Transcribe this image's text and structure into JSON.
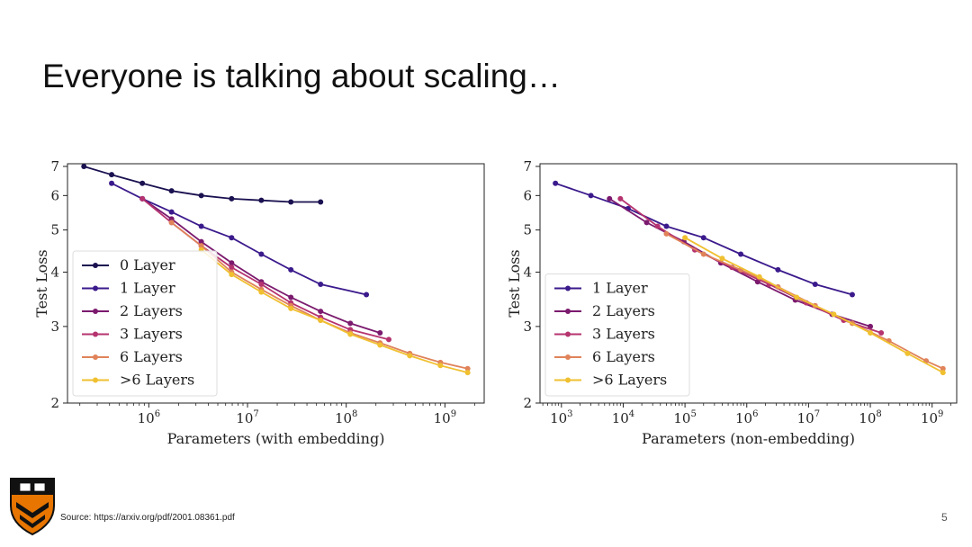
{
  "slide": {
    "title": "Everyone is talking about scaling…",
    "source": "Source: https://arxiv.org/pdf/2001.08361.pdf",
    "page_number": "5",
    "logo_icon": "princeton-shield-icon"
  },
  "chart_data": [
    {
      "type": "line",
      "xscale": "log",
      "yscale": "log",
      "xlabel": "Parameters (with embedding)",
      "ylabel": "Test Loss",
      "xlim": [
        150000,
        2500000000
      ],
      "ylim": [
        2,
        7.1
      ],
      "xticks": [
        {
          "v": 1000000,
          "b": "10",
          "e": "6"
        },
        {
          "v": 10000000,
          "b": "10",
          "e": "7"
        },
        {
          "v": 100000000,
          "b": "10",
          "e": "8"
        },
        {
          "v": 1000000000,
          "b": "10",
          "e": "9"
        }
      ],
      "yticks": [
        {
          "v": 2,
          "label": "2"
        },
        {
          "v": 3,
          "label": "3"
        },
        {
          "v": 4,
          "label": "4"
        },
        {
          "v": 5,
          "label": "5"
        },
        {
          "v": 6,
          "label": "6"
        },
        {
          "v": 7,
          "label": "7"
        }
      ],
      "legend_position": "lower-left",
      "series": [
        {
          "name": "0 Layer",
          "color": "#1a1150",
          "x": [
            220000,
            420000,
            860000,
            1700000,
            3400000,
            6900000,
            13800000,
            27500000,
            55000000
          ],
          "y": [
            7.0,
            6.7,
            6.4,
            6.15,
            6.0,
            5.9,
            5.85,
            5.8,
            5.8
          ]
        },
        {
          "name": "1 Layer",
          "color": "#3b1a8c",
          "x": [
            420000,
            860000,
            1700000,
            3400000,
            6900000,
            13800000,
            27500000,
            55000000,
            160000000
          ],
          "y": [
            6.4,
            5.9,
            5.5,
            5.1,
            4.8,
            4.4,
            4.05,
            3.75,
            3.55
          ]
        },
        {
          "name": "2 Layers",
          "color": "#7b1a6e",
          "x": [
            860000,
            1700000,
            3400000,
            6900000,
            13800000,
            27500000,
            55000000,
            110000000,
            220000000
          ],
          "y": [
            5.9,
            5.3,
            4.7,
            4.2,
            3.8,
            3.5,
            3.25,
            3.05,
            2.9
          ]
        },
        {
          "name": "3 Layers",
          "color": "#b5336f",
          "x": [
            860000,
            1700000,
            3400000,
            6900000,
            13800000,
            27500000,
            55000000,
            110000000,
            270000000
          ],
          "y": [
            5.9,
            5.2,
            4.6,
            4.1,
            3.75,
            3.4,
            3.15,
            2.95,
            2.8
          ]
        },
        {
          "name": "6 Layers",
          "color": "#e0835a",
          "x": [
            1700000,
            3400000,
            6900000,
            13800000,
            27500000,
            55000000,
            110000000,
            220000000,
            440000000,
            900000000,
            1700000000
          ],
          "y": [
            5.2,
            4.6,
            4.0,
            3.65,
            3.35,
            3.1,
            2.9,
            2.75,
            2.6,
            2.48,
            2.4
          ]
        },
        {
          "name": ">6 Layers",
          "color": "#f0c030",
          "x": [
            3400000,
            6900000,
            13800000,
            27500000,
            55000000,
            110000000,
            220000000,
            440000000,
            900000000,
            1700000000
          ],
          "y": [
            4.5,
            3.95,
            3.6,
            3.3,
            3.1,
            2.88,
            2.72,
            2.57,
            2.44,
            2.35
          ]
        }
      ]
    },
    {
      "type": "line",
      "xscale": "log",
      "yscale": "log",
      "xlabel": "Parameters (non-embedding)",
      "ylabel": "Test Loss",
      "xlim": [
        450,
        2500000000
      ],
      "ylim": [
        2,
        7.1
      ],
      "xticks": [
        {
          "v": 1000,
          "b": "10",
          "e": "3"
        },
        {
          "v": 10000,
          "b": "10",
          "e": "4"
        },
        {
          "v": 100000,
          "b": "10",
          "e": "5"
        },
        {
          "v": 1000000,
          "b": "10",
          "e": "6"
        },
        {
          "v": 10000000,
          "b": "10",
          "e": "7"
        },
        {
          "v": 100000000,
          "b": "10",
          "e": "8"
        },
        {
          "v": 1000000000,
          "b": "10",
          "e": "9"
        }
      ],
      "yticks": [
        {
          "v": 2,
          "label": "2"
        },
        {
          "v": 3,
          "label": "3"
        },
        {
          "v": 4,
          "label": "4"
        },
        {
          "v": 5,
          "label": "5"
        },
        {
          "v": 6,
          "label": "6"
        },
        {
          "v": 7,
          "label": "7"
        }
      ],
      "legend_position": "lower-left",
      "series": [
        {
          "name": "1 Layer",
          "color": "#3b1a8c",
          "x": [
            800,
            3000,
            12000,
            50000,
            200000,
            800000,
            3200000,
            12800000,
            51000000
          ],
          "y": [
            6.4,
            6.0,
            5.6,
            5.1,
            4.8,
            4.4,
            4.05,
            3.75,
            3.55
          ]
        },
        {
          "name": "2 Layers",
          "color": "#7b1a6e",
          "x": [
            6000,
            24000,
            96000,
            380000,
            1500000,
            6100000,
            24000000,
            100000000
          ],
          "y": [
            5.9,
            5.2,
            4.7,
            4.2,
            3.8,
            3.45,
            3.2,
            3.0
          ]
        },
        {
          "name": "3 Layers",
          "color": "#b5336f",
          "x": [
            9000,
            36000,
            144000,
            576000,
            2300000,
            9200000,
            37000000,
            150000000
          ],
          "y": [
            5.9,
            5.1,
            4.5,
            4.1,
            3.75,
            3.4,
            3.1,
            2.9
          ]
        },
        {
          "name": "6 Layers",
          "color": "#e0835a",
          "x": [
            50000,
            200000,
            800000,
            3200000,
            12800000,
            51000000,
            200000000,
            800000000,
            1500000000
          ],
          "y": [
            4.9,
            4.4,
            4.05,
            3.7,
            3.35,
            3.05,
            2.78,
            2.5,
            2.4
          ]
        },
        {
          "name": ">6 Layers",
          "color": "#f0c030",
          "x": [
            100000,
            400000,
            1600000,
            6400000,
            25600000,
            100000000,
            400000000,
            1500000000
          ],
          "y": [
            4.8,
            4.3,
            3.9,
            3.5,
            3.2,
            2.9,
            2.6,
            2.35
          ]
        }
      ]
    }
  ]
}
